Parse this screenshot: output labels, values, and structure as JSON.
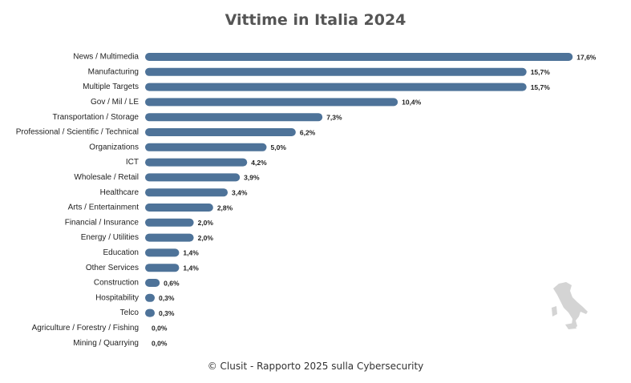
{
  "title": "Vittime in Italia 2024",
  "footer": "© Clusit - Rapporto 2025 sulla Cybersecurity",
  "colors": {
    "bar": "#4e7399",
    "map": "#d4d4d4"
  },
  "chart_data": {
    "type": "bar",
    "orientation": "horizontal",
    "categories": [
      "News / Multimedia",
      "Manufacturing",
      "Multiple Targets",
      "Gov / Mil / LE",
      "Transportation / Storage",
      "Professional / Scientific / Technical",
      "Organizations",
      "ICT",
      "Wholesale / Retail",
      "Healthcare",
      "Arts / Entertainment",
      "Financial / Insurance",
      "Energy / Utilities",
      "Education",
      "Other Services",
      "Construction",
      "Hospitability",
      "Telco",
      "Agriculture / Forestry / Fishing",
      "Mining / Quarrying"
    ],
    "values": [
      17.6,
      15.7,
      15.7,
      10.4,
      7.3,
      6.2,
      5.0,
      4.2,
      3.9,
      3.4,
      2.8,
      2.0,
      2.0,
      1.4,
      1.4,
      0.6,
      0.3,
      0.3,
      0.0,
      0.0
    ],
    "value_labels": [
      "17,6%",
      "15,7%",
      "15,7%",
      "10,4%",
      "7,3%",
      "6,2%",
      "5,0%",
      "4,2%",
      "3,9%",
      "3,4%",
      "2,8%",
      "2,0%",
      "2,0%",
      "1,4%",
      "1,4%",
      "0,6%",
      "0,3%",
      "0,3%",
      "0,0%",
      "0,0%"
    ],
    "title": "Vittime in Italia 2024",
    "xlabel": "",
    "ylabel": "",
    "grid": false,
    "legend": "none"
  }
}
